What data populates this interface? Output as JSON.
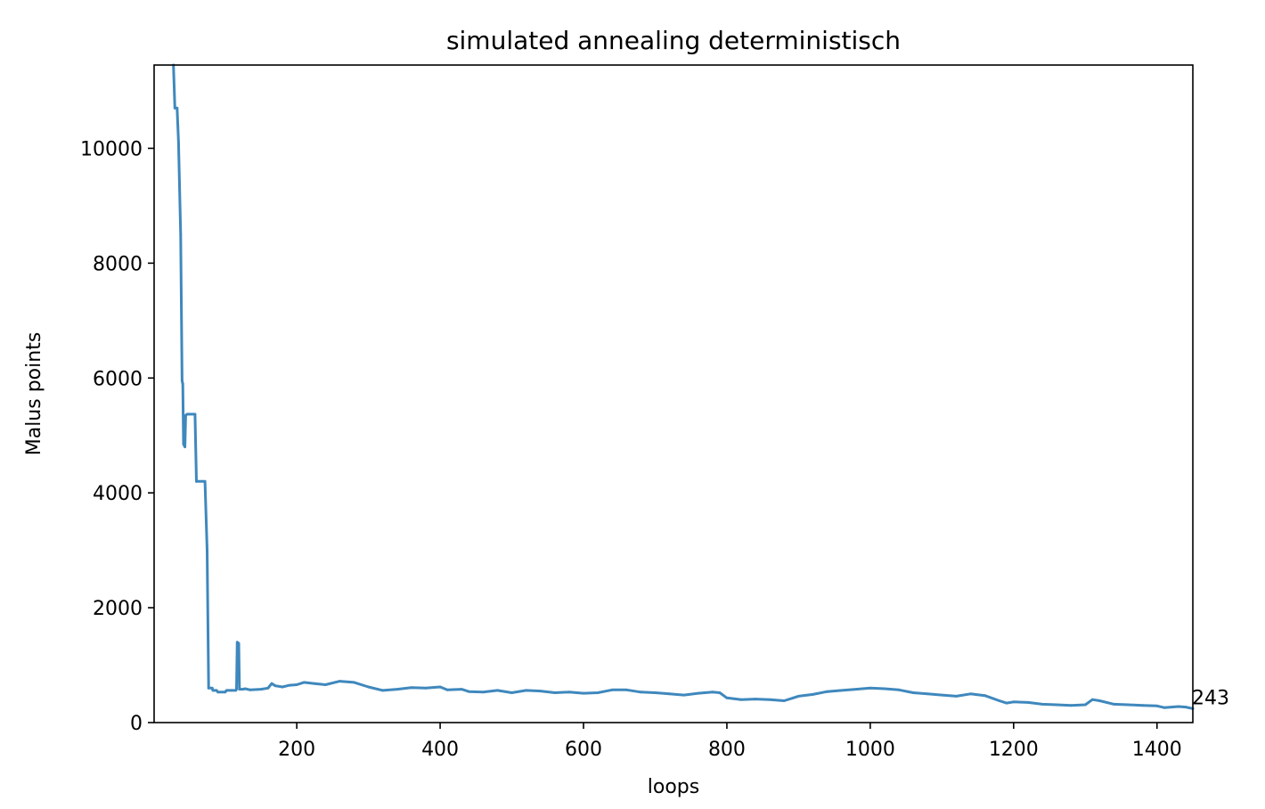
{
  "chart_data": {
    "type": "line",
    "title": "simulated annealing deterministisch",
    "xlabel": "loops",
    "ylabel": "Malus points",
    "xlim": [
      1,
      1450
    ],
    "ylim": [
      0,
      11450
    ],
    "x_ticks": [
      200,
      400,
      600,
      800,
      1000,
      1200,
      1400
    ],
    "y_ticks": [
      0,
      2000,
      4000,
      6000,
      8000,
      10000
    ],
    "grid": false,
    "legend": "none",
    "colors": {
      "line": "#3f88bd"
    },
    "annotation": {
      "text": "243",
      "x": 1450,
      "y": 243
    },
    "series": [
      {
        "values": [
          [
            28,
            11450
          ],
          [
            30,
            10700
          ],
          [
            33,
            10700
          ],
          [
            35,
            10100
          ],
          [
            38,
            8500
          ],
          [
            40,
            5950
          ],
          [
            41,
            5900
          ],
          [
            42,
            4850
          ],
          [
            44,
            4800
          ],
          [
            45,
            5350
          ],
          [
            47,
            5370
          ],
          [
            58,
            5370
          ],
          [
            60,
            4200
          ],
          [
            72,
            4200
          ],
          [
            75,
            3000
          ],
          [
            77,
            600
          ],
          [
            82,
            600
          ],
          [
            83,
            560
          ],
          [
            88,
            560
          ],
          [
            90,
            530
          ],
          [
            100,
            530
          ],
          [
            102,
            560
          ],
          [
            115,
            560
          ],
          [
            116,
            580
          ],
          [
            117,
            1400
          ],
          [
            119,
            1380
          ],
          [
            120,
            580
          ],
          [
            125,
            580
          ],
          [
            128,
            590
          ],
          [
            135,
            570
          ],
          [
            150,
            580
          ],
          [
            160,
            600
          ],
          [
            165,
            680
          ],
          [
            170,
            640
          ],
          [
            180,
            620
          ],
          [
            190,
            650
          ],
          [
            200,
            660
          ],
          [
            210,
            700
          ],
          [
            225,
            680
          ],
          [
            240,
            660
          ],
          [
            260,
            720
          ],
          [
            280,
            700
          ],
          [
            300,
            620
          ],
          [
            320,
            560
          ],
          [
            340,
            580
          ],
          [
            360,
            610
          ],
          [
            380,
            600
          ],
          [
            400,
            620
          ],
          [
            410,
            570
          ],
          [
            430,
            580
          ],
          [
            440,
            540
          ],
          [
            460,
            530
          ],
          [
            480,
            560
          ],
          [
            500,
            520
          ],
          [
            520,
            560
          ],
          [
            540,
            550
          ],
          [
            560,
            520
          ],
          [
            580,
            530
          ],
          [
            600,
            510
          ],
          [
            620,
            520
          ],
          [
            640,
            570
          ],
          [
            660,
            570
          ],
          [
            680,
            530
          ],
          [
            700,
            520
          ],
          [
            720,
            500
          ],
          [
            740,
            480
          ],
          [
            760,
            510
          ],
          [
            780,
            530
          ],
          [
            790,
            520
          ],
          [
            800,
            430
          ],
          [
            820,
            400
          ],
          [
            840,
            410
          ],
          [
            860,
            400
          ],
          [
            880,
            380
          ],
          [
            900,
            460
          ],
          [
            920,
            490
          ],
          [
            940,
            540
          ],
          [
            960,
            560
          ],
          [
            980,
            580
          ],
          [
            1000,
            600
          ],
          [
            1020,
            590
          ],
          [
            1040,
            570
          ],
          [
            1060,
            520
          ],
          [
            1080,
            500
          ],
          [
            1100,
            480
          ],
          [
            1120,
            460
          ],
          [
            1140,
            500
          ],
          [
            1160,
            470
          ],
          [
            1180,
            380
          ],
          [
            1190,
            340
          ],
          [
            1200,
            360
          ],
          [
            1220,
            350
          ],
          [
            1240,
            320
          ],
          [
            1260,
            310
          ],
          [
            1280,
            300
          ],
          [
            1300,
            310
          ],
          [
            1310,
            400
          ],
          [
            1320,
            380
          ],
          [
            1340,
            320
          ],
          [
            1360,
            310
          ],
          [
            1380,
            300
          ],
          [
            1400,
            290
          ],
          [
            1410,
            260
          ],
          [
            1420,
            270
          ],
          [
            1430,
            280
          ],
          [
            1440,
            270
          ],
          [
            1450,
            243
          ]
        ]
      }
    ]
  }
}
